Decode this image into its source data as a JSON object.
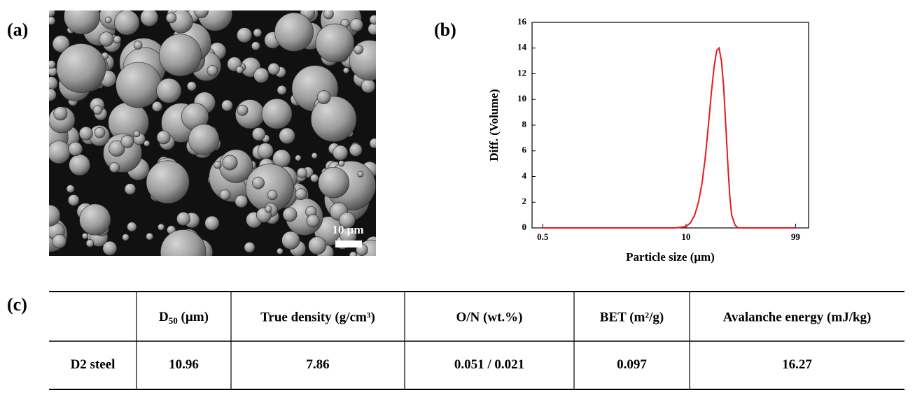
{
  "panel_labels": {
    "a": "(a)",
    "b": "(b)",
    "c": "(c)"
  },
  "image": {
    "scale_bar": "10 µm"
  },
  "chart_data": {
    "type": "line",
    "xlabel": "Particle size (μm)",
    "ylabel": "Diff. (Volume)",
    "x": [
      0.5,
      1,
      2,
      5,
      8,
      10,
      11,
      12,
      13,
      14,
      15,
      16,
      17,
      18,
      19,
      20,
      21,
      22,
      23,
      24,
      25,
      26,
      28,
      30,
      50,
      99
    ],
    "values": [
      0,
      0,
      0,
      0,
      0,
      0.1,
      0.4,
      1,
      2,
      3.5,
      5.5,
      8,
      10.5,
      12.5,
      13.8,
      14,
      13,
      11,
      8,
      5,
      2.5,
      1,
      0.2,
      0,
      0,
      0
    ],
    "color": "#e8191f",
    "xscale": "log",
    "xlim": [
      0.4,
      130
    ],
    "xticks": [
      0.5,
      10,
      99
    ],
    "ylim": [
      0,
      16
    ],
    "yticks": [
      0,
      2,
      4,
      6,
      8,
      10,
      12,
      14,
      16
    ]
  },
  "table": {
    "header": [
      [
        "D",
        "50",
        " (µm)"
      ],
      "True density (g/cm³)",
      "O/N (wt.%)",
      "BET (m²/g)",
      "Avalanche energy (mJ/kg)"
    ],
    "rows": [
      [
        "D2 steel",
        "10.96",
        "7.86",
        "0.051 / 0.021",
        "0.097",
        "16.27"
      ]
    ]
  }
}
